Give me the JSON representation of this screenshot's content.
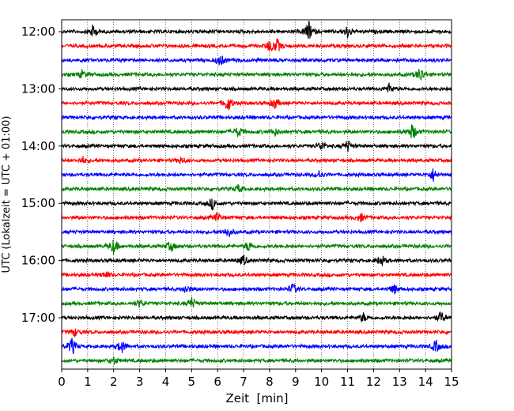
{
  "chart_data": {
    "type": "line",
    "title": "",
    "xlabel": "Zeit  [min]",
    "ylabel": "UTC (Lokalzeit = UTC + 01:00)",
    "xlim": [
      0,
      15
    ],
    "x_ticks": [
      "0",
      "1",
      "2",
      "3",
      "4",
      "5",
      "6",
      "7",
      "8",
      "9",
      "10",
      "11",
      "12",
      "13",
      "14",
      "15"
    ],
    "y_tick_labels": [
      "12:00",
      "13:00",
      "14:00",
      "15:00",
      "16:00",
      "17:00"
    ],
    "grid": "vertical-dotted",
    "trace_colors": [
      "#000000",
      "#ff0000",
      "#0000ff",
      "#008000"
    ],
    "traces": [
      {
        "start": "12:00",
        "color": "#000000",
        "events": [
          [
            1.2,
            1.6
          ],
          [
            9.5,
            2.6
          ],
          [
            11.0,
            1.6
          ]
        ]
      },
      {
        "start": "12:15",
        "color": "#ff0000",
        "events": [
          [
            8.0,
            1.4
          ],
          [
            8.3,
            1.7
          ]
        ]
      },
      {
        "start": "12:30",
        "color": "#0000ff",
        "events": [
          [
            6.1,
            1.6
          ]
        ]
      },
      {
        "start": "12:45",
        "color": "#008000",
        "events": [
          [
            0.8,
            1.0
          ],
          [
            13.8,
            2.0
          ]
        ]
      },
      {
        "start": "13:00",
        "color": "#000000",
        "events": [
          [
            12.6,
            1.2
          ]
        ]
      },
      {
        "start": "13:15",
        "color": "#ff0000",
        "events": [
          [
            6.4,
            2.2
          ],
          [
            8.2,
            1.4
          ]
        ]
      },
      {
        "start": "13:30",
        "color": "#0000ff",
        "events": []
      },
      {
        "start": "13:45",
        "color": "#008000",
        "events": [
          [
            6.8,
            1.4
          ],
          [
            8.2,
            1.0
          ],
          [
            13.5,
            2.2
          ]
        ]
      },
      {
        "start": "14:00",
        "color": "#000000",
        "events": [
          [
            10.0,
            1.2
          ],
          [
            11.0,
            1.5
          ]
        ]
      },
      {
        "start": "14:15",
        "color": "#ff0000",
        "events": [
          [
            0.8,
            0.9
          ],
          [
            4.6,
            0.9
          ]
        ]
      },
      {
        "start": "14:30",
        "color": "#0000ff",
        "events": [
          [
            14.3,
            1.6
          ],
          [
            9.9,
            1.0
          ]
        ]
      },
      {
        "start": "14:45",
        "color": "#008000",
        "events": [
          [
            6.8,
            1.0
          ]
        ]
      },
      {
        "start": "15:00",
        "color": "#000000",
        "events": [
          [
            5.8,
            1.5
          ]
        ]
      },
      {
        "start": "15:15",
        "color": "#ff0000",
        "events": [
          [
            6.0,
            1.2
          ],
          [
            11.5,
            1.0
          ]
        ]
      },
      {
        "start": "15:30",
        "color": "#0000ff",
        "events": [
          [
            6.4,
            1.5
          ]
        ]
      },
      {
        "start": "15:45",
        "color": "#008000",
        "events": [
          [
            2.0,
            2.0
          ],
          [
            4.2,
            1.2
          ],
          [
            7.2,
            1.4
          ]
        ]
      },
      {
        "start": "16:00",
        "color": "#000000",
        "events": [
          [
            7.0,
            1.3
          ],
          [
            12.3,
            1.4
          ]
        ]
      },
      {
        "start": "16:15",
        "color": "#ff0000",
        "events": [
          [
            1.7,
            0.9
          ]
        ]
      },
      {
        "start": "16:30",
        "color": "#0000ff",
        "events": [
          [
            8.9,
            1.3
          ],
          [
            12.8,
            1.2
          ],
          [
            4.8,
            1.0
          ]
        ]
      },
      {
        "start": "16:45",
        "color": "#008000",
        "events": [
          [
            5.0,
            1.5
          ],
          [
            3.0,
            0.9
          ]
        ]
      },
      {
        "start": "17:00",
        "color": "#000000",
        "events": [
          [
            11.6,
            1.1
          ],
          [
            14.6,
            1.6
          ]
        ]
      },
      {
        "start": "17:15",
        "color": "#ff0000",
        "events": [
          [
            0.5,
            1.0
          ]
        ]
      },
      {
        "start": "17:30",
        "color": "#0000ff",
        "events": [
          [
            0.4,
            2.2
          ],
          [
            2.3,
            1.8
          ],
          [
            14.4,
            1.6
          ]
        ]
      },
      {
        "start": "17:45",
        "color": "#008000",
        "events": [
          [
            2.0,
            1.0
          ]
        ]
      }
    ]
  }
}
